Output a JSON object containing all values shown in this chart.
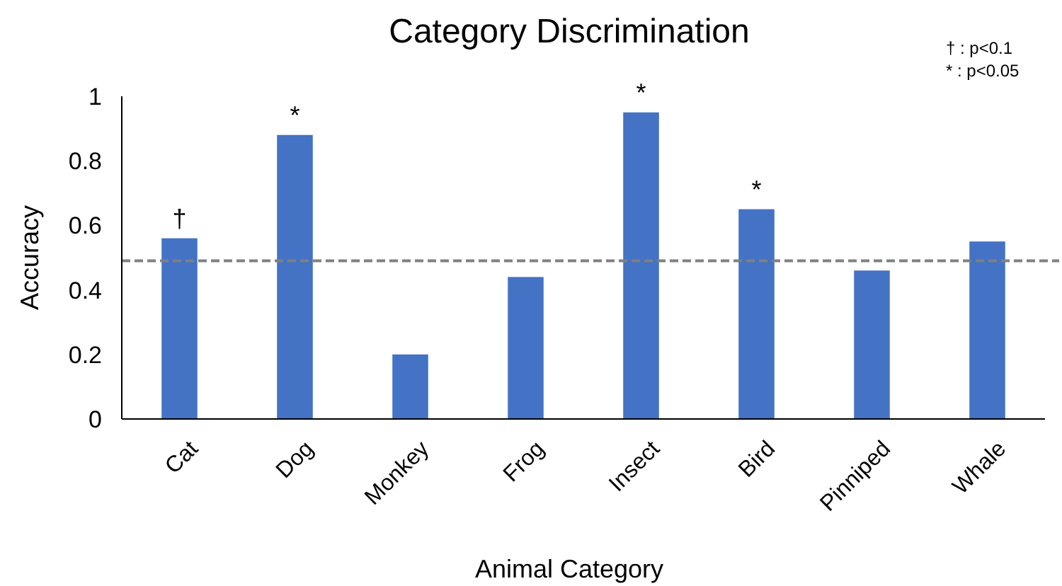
{
  "chart_data": {
    "type": "bar",
    "title": "Category Discrimination",
    "xlabel": "Animal Category",
    "ylabel": "Accuracy",
    "categories": [
      "Cat",
      "Dog",
      "Monkey",
      "Frog",
      "Insect",
      "Bird",
      "Pinniped",
      "Whale"
    ],
    "values": [
      0.56,
      0.88,
      0.2,
      0.44,
      0.95,
      0.65,
      0.46,
      0.55
    ],
    "color": "#4472c4",
    "ylim": [
      0,
      1
    ],
    "yticks": [
      0,
      0.2,
      0.4,
      0.6,
      0.8,
      1
    ],
    "grid": false,
    "ref_lines": [
      {
        "axis": "y",
        "value": 0.49,
        "color": "#808080",
        "line_style": "dashed"
      }
    ],
    "annotations": [
      {
        "text": "†",
        "x": "Cat",
        "y": 0.56
      },
      {
        "text": "*",
        "x": "Dog",
        "y": 0.88
      },
      {
        "text": "*",
        "x": "Insect",
        "y": 0.95
      },
      {
        "text": "*",
        "x": "Bird",
        "y": 0.65
      },
      "† : p<0.1",
      "* : p<0.05"
    ]
  }
}
